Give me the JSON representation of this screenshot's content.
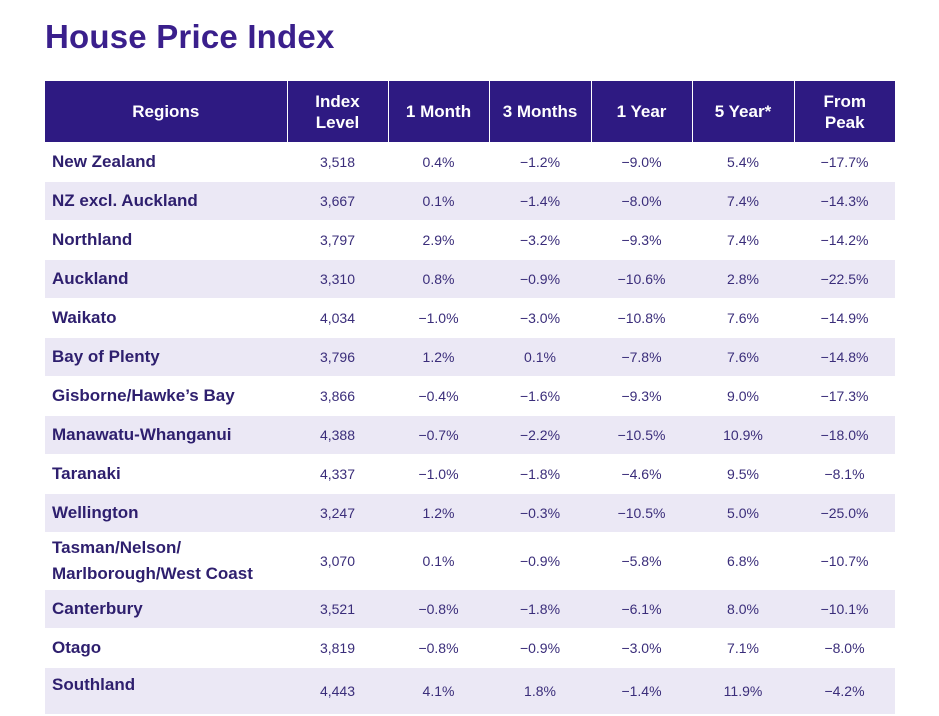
{
  "title": "House Price Index",
  "table": {
    "headers": [
      [
        "Regions"
      ],
      [
        "Index",
        "Level"
      ],
      [
        "1 Month"
      ],
      [
        "3 Months"
      ],
      [
        "1 Year"
      ],
      [
        "5 Year*"
      ],
      [
        "From",
        "Peak"
      ]
    ],
    "rows": [
      {
        "region": [
          "New Zealand"
        ],
        "index": "3,518",
        "m1": "0.4%",
        "m3": "−1.2%",
        "y1": "−9.0%",
        "y5": "5.4%",
        "peak": "−17.7%"
      },
      {
        "region": [
          "NZ excl. Auckland"
        ],
        "index": "3,667",
        "m1": "0.1%",
        "m3": "−1.4%",
        "y1": "−8.0%",
        "y5": "7.4%",
        "peak": "−14.3%"
      },
      {
        "region": [
          "Northland"
        ],
        "index": "3,797",
        "m1": "2.9%",
        "m3": "−3.2%",
        "y1": "−9.3%",
        "y5": "7.4%",
        "peak": "−14.2%"
      },
      {
        "region": [
          "Auckland"
        ],
        "index": "3,310",
        "m1": "0.8%",
        "m3": "−0.9%",
        "y1": "−10.6%",
        "y5": "2.8%",
        "peak": "−22.5%"
      },
      {
        "region": [
          "Waikato"
        ],
        "index": "4,034",
        "m1": "−1.0%",
        "m3": "−3.0%",
        "y1": "−10.8%",
        "y5": "7.6%",
        "peak": "−14.9%"
      },
      {
        "region": [
          "Bay of Plenty"
        ],
        "index": "3,796",
        "m1": "1.2%",
        "m3": "0.1%",
        "y1": "−7.8%",
        "y5": "7.6%",
        "peak": "−14.8%"
      },
      {
        "region": [
          "Gisborne/Hawke’s Bay"
        ],
        "index": "3,866",
        "m1": "−0.4%",
        "m3": "−1.6%",
        "y1": "−9.3%",
        "y5": "9.0%",
        "peak": "−17.3%"
      },
      {
        "region": [
          "Manawatu-Whanganui"
        ],
        "index": "4,388",
        "m1": "−0.7%",
        "m3": "−2.2%",
        "y1": "−10.5%",
        "y5": "10.9%",
        "peak": "−18.0%"
      },
      {
        "region": [
          "Taranaki"
        ],
        "index": "4,337",
        "m1": "−1.0%",
        "m3": "−1.8%",
        "y1": "−4.6%",
        "y5": "9.5%",
        "peak": "−8.1%"
      },
      {
        "region": [
          "Wellington"
        ],
        "index": "3,247",
        "m1": "1.2%",
        "m3": "−0.3%",
        "y1": "−10.5%",
        "y5": "5.0%",
        "peak": "−25.0%"
      },
      {
        "region": [
          "Tasman/Nelson/",
          "Marlborough/West Coast"
        ],
        "index": "3,070",
        "m1": "0.1%",
        "m3": "−0.9%",
        "y1": "−5.8%",
        "y5": "6.8%",
        "peak": "−10.7%"
      },
      {
        "region": [
          "Canterbury"
        ],
        "index": "3,521",
        "m1": "−0.8%",
        "m3": "−1.8%",
        "y1": "−6.1%",
        "y5": "8.0%",
        "peak": "−10.1%"
      },
      {
        "region": [
          "Otago"
        ],
        "index": "3,819",
        "m1": "−0.8%",
        "m3": "−0.9%",
        "y1": "−3.0%",
        "y5": "7.1%",
        "peak": "−8.0%"
      },
      {
        "region": [
          "Southland"
        ],
        "index": "4,443",
        "m1": "4.1%",
        "m3": "1.8%",
        "y1": "−1.4%",
        "y5": "11.9%",
        "peak": "−4.2%"
      }
    ]
  }
}
